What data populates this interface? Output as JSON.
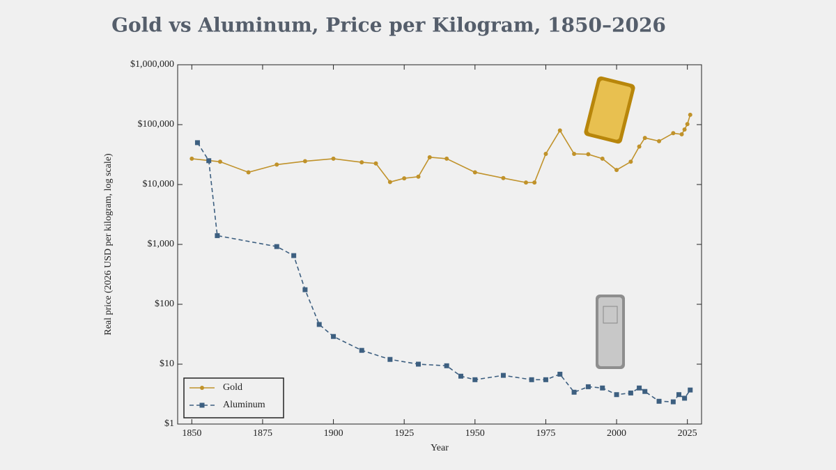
{
  "chart_data": {
    "type": "line",
    "title": "Gold vs Aluminum, Price per Kilogram, 1850–2026",
    "x_label": "Year",
    "y_label": "Real price (2026 USD per kilogram, log scale)",
    "y_log_scale": true,
    "legend_position": "lower-left",
    "xlim": [
      1845,
      2030
    ],
    "xticks": [
      1850,
      1875,
      1900,
      1925,
      1950,
      1975,
      2000,
      2025
    ],
    "ylim": [
      1,
      1000000
    ],
    "yticks": [
      {
        "value": 1,
        "label": "$1"
      },
      {
        "value": 10,
        "label": "$10"
      },
      {
        "value": 100,
        "label": "$100"
      },
      {
        "value": 1000,
        "label": "$1,000"
      },
      {
        "value": 10000,
        "label": "$10,000"
      },
      {
        "value": 100000,
        "label": "$100,000"
      },
      {
        "value": 1000000,
        "label": "$1,000,000"
      }
    ],
    "series": [
      {
        "name": "Gold",
        "color": "#c0922a",
        "marker": "circle",
        "dash": "solid",
        "x": [
          1850,
          1860,
          1870,
          1880,
          1890,
          1900,
          1910,
          1915,
          1920,
          1925,
          1930,
          1934,
          1940,
          1950,
          1960,
          1968,
          1971,
          1975,
          1980,
          1985,
          1990,
          1995,
          2000,
          2005,
          2008,
          2010,
          2015,
          2020,
          2023,
          2024,
          2025,
          2026
        ],
        "values": [
          27000,
          24000,
          16000,
          21500,
          24500,
          27000,
          23500,
          22500,
          11000,
          12700,
          13500,
          28500,
          27000,
          16000,
          12800,
          10800,
          10800,
          32500,
          80000,
          32500,
          32000,
          27000,
          17500,
          24000,
          43000,
          60000,
          53000,
          72000,
          69000,
          83000,
          102000,
          146000
        ]
      },
      {
        "name": "Aluminum",
        "color": "#3d5f80",
        "marker": "square",
        "dash": "dashed",
        "x": [
          1852,
          1856,
          1859,
          1880,
          1886,
          1890,
          1895,
          1900,
          1910,
          1920,
          1930,
          1940,
          1945,
          1950,
          1960,
          1970,
          1975,
          1980,
          1985,
          1990,
          1995,
          2000,
          2005,
          2008,
          2010,
          2015,
          2020,
          2022,
          2024,
          2026
        ],
        "values": [
          50000,
          25000,
          1400,
          920,
          650,
          175,
          46,
          29,
          17,
          12,
          10,
          9.4,
          6.3,
          5.5,
          6.5,
          5.5,
          5.5,
          6.8,
          3.4,
          4.2,
          4.0,
          3.1,
          3.3,
          4.0,
          3.5,
          2.4,
          2.35,
          3.1,
          2.7,
          3.7
        ]
      }
    ]
  }
}
